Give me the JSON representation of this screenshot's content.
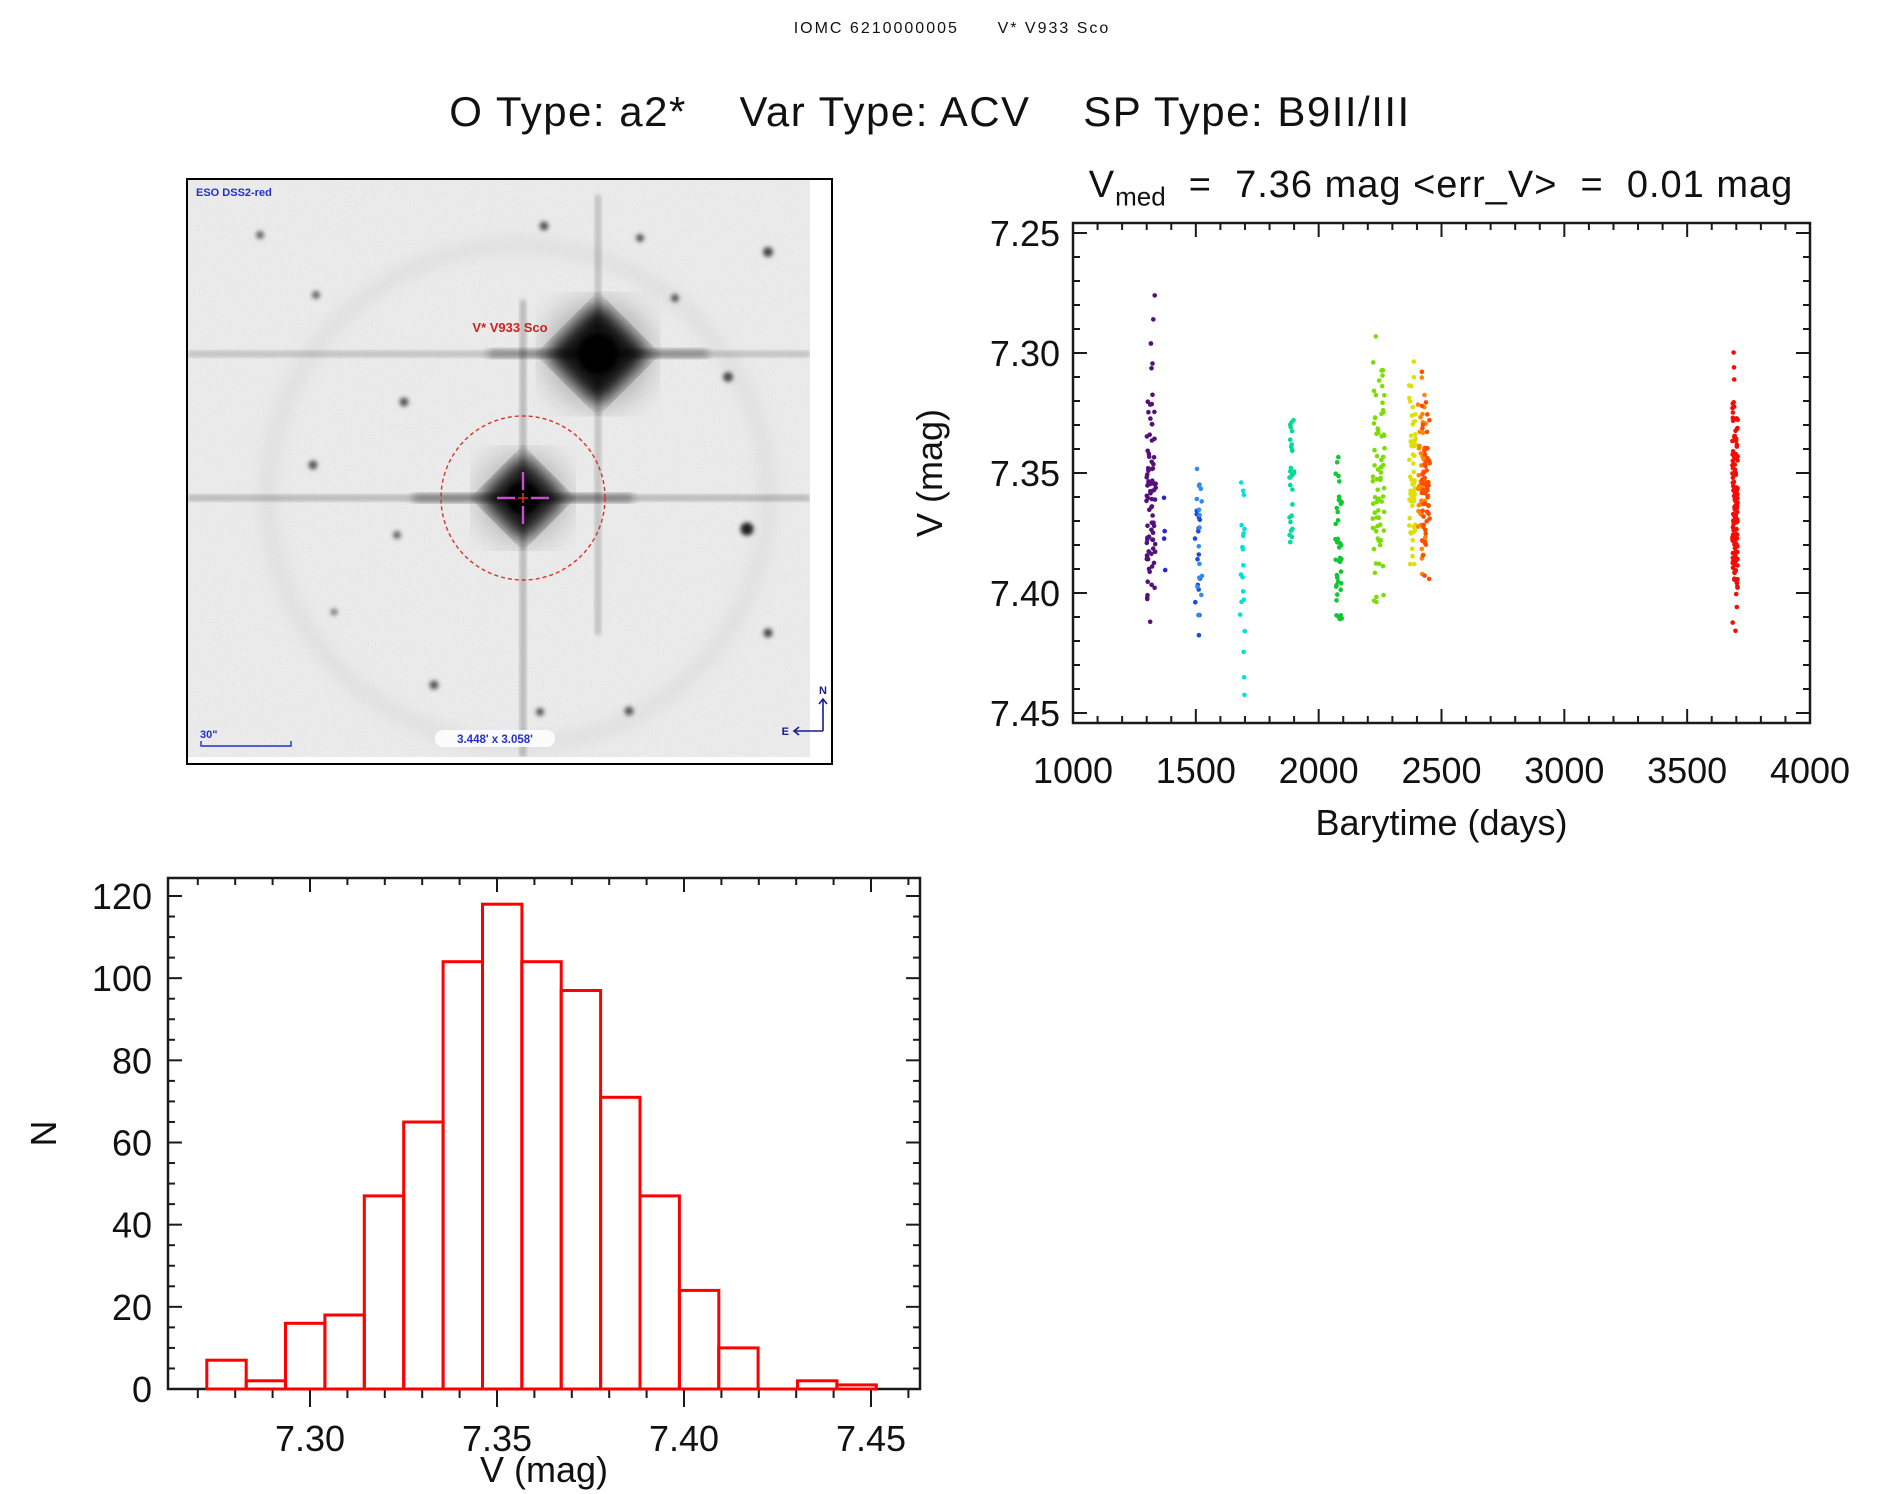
{
  "header": {
    "title": "IOMC 6210000005      V* V933 Sco",
    "subtitle": "O Type: a2*    Var Type: ACV    SP Type: B9II/III"
  },
  "finder": {
    "survey_label": "ESO DSS2-red",
    "target_label": "V* V933 Sco",
    "scalebar_label": "30\"",
    "fov_label": "3.448' x 3.058'",
    "compass_n": "N",
    "compass_e": "E",
    "annotation_color": "#2230c8",
    "target_color": "#cc2020",
    "compass_color": "#151d8c",
    "marker_color": "#d42a20"
  },
  "chart_data": [
    {
      "id": "lightcurve",
      "type": "scatter",
      "title": {
        "base": "V",
        "sub": "med",
        "rest": "  =  7.36 mag <err_V>  =  0.01 mag"
      },
      "xlabel": "Barytime (days)",
      "ylabel": "V (mag)",
      "xlim": [
        1000,
        4000
      ],
      "ylim": [
        7.25,
        7.45
      ],
      "y_inverted_axis": true,
      "xticks": [
        1000,
        1500,
        2000,
        2500,
        3000,
        3500,
        4000
      ],
      "x_minor_step": 100,
      "yticks": [
        7.25,
        7.3,
        7.35,
        7.4,
        7.45
      ],
      "y_minor_step": 0.01,
      "grid": false,
      "legend": "none",
      "clusters": [
        {
          "day": 1318,
          "day_jitter": 19,
          "n": 85,
          "y_mean": 7.362,
          "y_std": 0.034,
          "y_min": 7.272,
          "y_max": 7.413,
          "color": "#54117b"
        },
        {
          "day": 1372,
          "day_jitter": 4,
          "n": 4,
          "y_mean": 7.372,
          "y_std": 0.028,
          "y_min": 7.343,
          "y_max": 7.405,
          "color": "#2a23d8"
        },
        {
          "day": 1505,
          "day_jitter": 12,
          "n": 16,
          "y_mean": 7.382,
          "y_std": 0.02,
          "y_min": 7.344,
          "y_max": 7.422,
          "color": "#1e49e0"
        },
        {
          "day": 1515,
          "day_jitter": 12,
          "n": 16,
          "y_mean": 7.38,
          "y_std": 0.02,
          "y_min": 7.344,
          "y_max": 7.418,
          "color": "#2f8cf2"
        },
        {
          "day": 1690,
          "day_jitter": 10,
          "n": 20,
          "y_mean": 7.39,
          "y_std": 0.028,
          "y_min": 7.346,
          "y_max": 7.443,
          "color": "#00e0dc"
        },
        {
          "day": 1890,
          "day_jitter": 10,
          "n": 28,
          "y_mean": 7.35,
          "y_std": 0.026,
          "y_min": 7.295,
          "y_max": 7.392,
          "color": "#00dc92"
        },
        {
          "day": 2082,
          "day_jitter": 14,
          "n": 42,
          "y_mean": 7.378,
          "y_std": 0.018,
          "y_min": 7.343,
          "y_max": 7.412,
          "color": "#0fc832"
        },
        {
          "day": 2244,
          "day_jitter": 24,
          "n": 75,
          "y_mean": 7.353,
          "y_std": 0.026,
          "y_min": 7.289,
          "y_max": 7.417,
          "color": "#7ddc06"
        },
        {
          "day": 2382,
          "day_jitter": 14,
          "n": 60,
          "y_mean": 7.352,
          "y_std": 0.022,
          "y_min": 7.294,
          "y_max": 7.403,
          "color": "#dde005"
        },
        {
          "day": 2420,
          "day_jitter": 16,
          "n": 50,
          "y_mean": 7.354,
          "y_std": 0.021,
          "y_min": 7.296,
          "y_max": 7.407,
          "color": "#ff8800"
        },
        {
          "day": 2436,
          "day_jitter": 16,
          "n": 60,
          "y_mean": 7.353,
          "y_std": 0.02,
          "y_min": 7.296,
          "y_max": 7.405,
          "color": "#ff4d00"
        },
        {
          "day": 3695,
          "day_jitter": 11,
          "n": 140,
          "y_mean": 7.362,
          "y_std": 0.023,
          "y_min": 7.294,
          "y_max": 7.417,
          "color": "#f30d07"
        }
      ]
    },
    {
      "id": "v-histogram",
      "type": "bar",
      "title": "",
      "xlabel": "V (mag)",
      "ylabel": "N",
      "bin_start": 7.2724,
      "bin_width": 0.01053,
      "values": [
        7,
        2,
        16,
        18,
        47,
        65,
        104,
        118,
        104,
        97,
        71,
        47,
        24,
        10,
        0,
        2,
        1
      ],
      "xticks": [
        7.3,
        7.35,
        7.4,
        7.45
      ],
      "x_minor_step": 0.01,
      "yticks": [
        0,
        20,
        40,
        60,
        80,
        100,
        120
      ],
      "y_minor_step": 5,
      "xlim": [
        7.262,
        7.4631
      ],
      "ylim": [
        0,
        124.4
      ],
      "grid": false,
      "bar_color": "#ff0000"
    }
  ]
}
